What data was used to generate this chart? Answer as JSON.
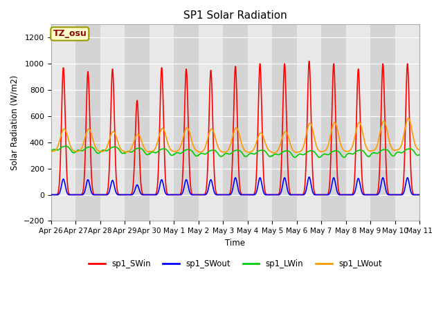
{
  "title": "SP1 Solar Radiation",
  "ylabel": "Solar Radiation (W/m2)",
  "xlabel": "Time",
  "ylim": [
    -200,
    1300
  ],
  "annotation": "TZ_osu",
  "annotation_color": "#8b0000",
  "annotation_bg": "#ffffcc",
  "annotation_border": "#999900",
  "bg_color": "#e8e8e8",
  "bg_band_color": "#d4d4d4",
  "series": {
    "sp1_SWin": {
      "color": "#ff0000",
      "lw": 1.2
    },
    "sp1_SWout": {
      "color": "#0000ff",
      "lw": 1.2
    },
    "sp1_LWin": {
      "color": "#00cc00",
      "lw": 1.2
    },
    "sp1_LWout": {
      "color": "#ff9900",
      "lw": 1.2
    }
  },
  "tick_labels": [
    "Apr 26",
    "Apr 27",
    "Apr 28",
    "Apr 29",
    "Apr 30",
    "May 1",
    "May 2",
    "May 3",
    "May 4",
    "May 5",
    "May 6",
    "May 7",
    "May 8",
    "May 9",
    "May 10",
    "May 11"
  ],
  "n_days": 15,
  "pts_per_day": 96,
  "sw_in_peaks": [
    970,
    940,
    960,
    720,
    970,
    960,
    950,
    980,
    1000,
    1000,
    1020,
    1000,
    960,
    1000,
    1000
  ],
  "sw_out_peaks": [
    120,
    115,
    110,
    75,
    115,
    115,
    115,
    130,
    130,
    130,
    135,
    130,
    125,
    130,
    130
  ],
  "lw_in_base": [
    345,
    340,
    340,
    330,
    325,
    320,
    315,
    315,
    315,
    310,
    310,
    310,
    315,
    320,
    325
  ],
  "lw_out_peaks": [
    500,
    500,
    480,
    460,
    505,
    510,
    500,
    510,
    470,
    480,
    545,
    550,
    550,
    560,
    580
  ],
  "lw_out_night": [
    330,
    330,
    330,
    325,
    330,
    330,
    325,
    325,
    325,
    320,
    325,
    330,
    330,
    335,
    340
  ]
}
